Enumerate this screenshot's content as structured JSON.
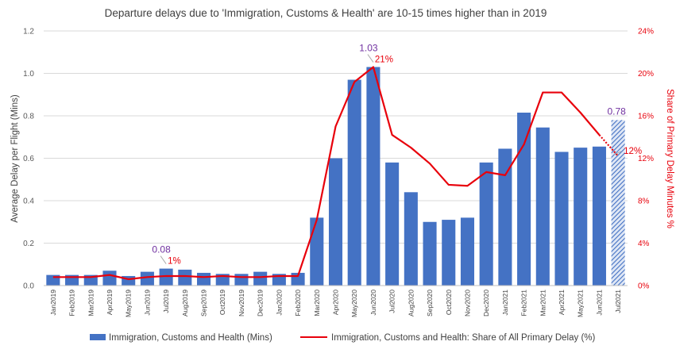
{
  "chart_data": {
    "type": "bar",
    "title": "Departure delays due to 'Immigration, Customs & Health' are 10-15 times higher than in 2019",
    "categories": [
      "Jan2019",
      "Feb2019",
      "Mar2019",
      "Apr2019",
      "May2019",
      "Jun2019",
      "Jul2019",
      "Aug2019",
      "Sep2019",
      "Oct2019",
      "Nov2019",
      "Dec2019",
      "Jan2020",
      "Feb2020",
      "Mar2020",
      "Apr2020",
      "May2020",
      "Jun2020",
      "Jul2020",
      "Aug2020",
      "Sep2020",
      "Oct2020",
      "Nov2020",
      "Dec2020",
      "Jan2021",
      "Feb2021",
      "Mar2021",
      "Apr2021",
      "May2021",
      "Jun2021",
      "Jul2021"
    ],
    "series": [
      {
        "name": "Immigration, Customs and Health (Mins)",
        "type": "bar",
        "axis": "left",
        "color": "#4472c4",
        "values": [
          0.05,
          0.05,
          0.05,
          0.07,
          0.045,
          0.065,
          0.08,
          0.075,
          0.06,
          0.055,
          0.055,
          0.065,
          0.055,
          0.06,
          0.32,
          0.6,
          0.97,
          1.03,
          0.58,
          0.44,
          0.3,
          0.31,
          0.32,
          0.58,
          0.645,
          0.815,
          0.745,
          0.63,
          0.65,
          0.655,
          0.78
        ],
        "hatched_last": true
      },
      {
        "name": "Immigration, Customs and Health: Share of All Primary Delay (%)",
        "type": "line",
        "axis": "right",
        "color": "#e8000b",
        "values": [
          0.8,
          0.8,
          0.8,
          1.0,
          0.6,
          0.8,
          0.9,
          0.9,
          0.8,
          0.9,
          0.8,
          0.8,
          0.9,
          0.9,
          6.2,
          15.0,
          19.2,
          20.6,
          14.2,
          13.0,
          11.5,
          9.5,
          9.4,
          10.7,
          10.4,
          13.3,
          18.2,
          18.2,
          16.3,
          14.2,
          12.2
        ],
        "dotted_last_segment": true
      }
    ],
    "ylabel": "Average Delay per Flight (Mins)",
    "y2label": "Share of Primary Delay Minutes %",
    "ylim": [
      0,
      1.2
    ],
    "yticks": [
      "0.0",
      "0.2",
      "0.4",
      "0.6",
      "0.8",
      "1.0",
      "1.2"
    ],
    "y2lim": [
      0,
      24
    ],
    "y2ticks": [
      "0%",
      "4%",
      "8%",
      "12%",
      "16%",
      "20%",
      "24%"
    ],
    "annotations": [
      {
        "category_index": 6,
        "bar_label": "0.08",
        "line_label": "1%"
      },
      {
        "category_index": 17,
        "bar_label": "1.03",
        "line_label": "21%"
      },
      {
        "category_index": 30,
        "bar_label": "0.78",
        "line_label": "12%"
      }
    ],
    "legend_position": "bottom",
    "grid": true
  }
}
